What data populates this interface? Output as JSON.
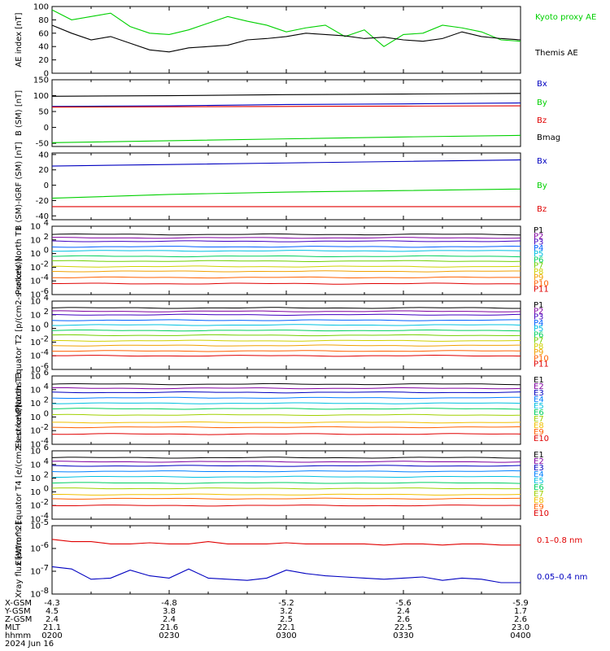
{
  "chart_data": [
    {
      "type": "line",
      "ylabel": "AE index [nT]",
      "ylim": [
        0,
        100
      ],
      "yscale": "linear",
      "yticks": [
        "0",
        "20",
        "40",
        "60",
        "80",
        "100"
      ],
      "series": [
        {
          "name": "Kyoto proxy AE",
          "color": "#00d000",
          "x": [
            "0200",
            "0205",
            "0210",
            "0215",
            "0220",
            "0225",
            "0230",
            "0235",
            "0240",
            "0245",
            "0250",
            "0255",
            "0300",
            "0305",
            "0310",
            "0315",
            "0320",
            "0325",
            "0330",
            "0335",
            "0340",
            "0345",
            "0350",
            "0355",
            "0400"
          ],
          "values": [
            95,
            80,
            85,
            90,
            70,
            60,
            58,
            65,
            75,
            85,
            78,
            72,
            62,
            68,
            72,
            55,
            65,
            40,
            58,
            60,
            72,
            68,
            62,
            50,
            48
          ]
        },
        {
          "name": "Themis AE",
          "color": "#000000",
          "x": [
            "0200",
            "0205",
            "0210",
            "0215",
            "0220",
            "0225",
            "0230",
            "0235",
            "0240",
            "0245",
            "0250",
            "0255",
            "0300",
            "0305",
            "0310",
            "0315",
            "0320",
            "0325",
            "0330",
            "0335",
            "0340",
            "0345",
            "0350",
            "0355",
            "0400"
          ],
          "values": [
            72,
            60,
            50,
            55,
            45,
            35,
            32,
            38,
            40,
            42,
            50,
            52,
            55,
            60,
            58,
            56,
            52,
            54,
            50,
            48,
            52,
            62,
            55,
            52,
            50
          ]
        }
      ]
    },
    {
      "type": "line",
      "ylabel": "B (SM) [nT]",
      "ylim": [
        -60,
        150
      ],
      "yscale": "linear",
      "yticks": [
        "-50",
        "0",
        "50",
        "100",
        "150"
      ],
      "series": [
        {
          "name": "Bx",
          "color": "#0000c0",
          "x": [
            "0200",
            "0230",
            "0300",
            "0330",
            "0400"
          ],
          "values": [
            66,
            68,
            72,
            74,
            77
          ]
        },
        {
          "name": "By",
          "color": "#00d000",
          "x": [
            "0200",
            "0230",
            "0300",
            "0330",
            "0400"
          ],
          "values": [
            -48,
            -42,
            -36,
            -30,
            -25
          ]
        },
        {
          "name": "Bz",
          "color": "#e00000",
          "x": [
            "0200",
            "0230",
            "0300",
            "0330",
            "0400"
          ],
          "values": [
            64,
            65,
            66,
            67,
            68
          ]
        },
        {
          "name": "Bmag",
          "color": "#000000",
          "x": [
            "0200",
            "0230",
            "0300",
            "0330",
            "0400"
          ],
          "values": [
            98,
            100,
            103,
            105,
            107
          ]
        }
      ]
    },
    {
      "type": "line",
      "ylabel": "B (SM)-IGRF (SM) [nT]",
      "ylim": [
        -45,
        42
      ],
      "yscale": "linear",
      "yticks": [
        "-40",
        "-20",
        "0",
        "20",
        "40"
      ],
      "series": [
        {
          "name": "Bx",
          "color": "#0000c0",
          "x": [
            "0200",
            "0230",
            "0300",
            "0330",
            "0400"
          ],
          "values": [
            25,
            27,
            29,
            31,
            33
          ]
        },
        {
          "name": "By",
          "color": "#00d000",
          "x": [
            "0200",
            "0230",
            "0300",
            "0330",
            "0400"
          ],
          "values": [
            -17,
            -12,
            -9,
            -7,
            -5
          ]
        },
        {
          "name": "Bz",
          "color": "#e00000",
          "x": [
            "0200",
            "0230",
            "0300",
            "0330",
            "0400"
          ],
          "values": [
            -28,
            -28,
            -28,
            -28,
            -28
          ]
        }
      ]
    },
    {
      "type": "line",
      "ylabel": "Protons North T1",
      "yscale": "log",
      "yexp": [
        -6,
        4
      ],
      "ytick_exp": [
        -6,
        -4,
        -2,
        0,
        2,
        4
      ],
      "legend": [
        "P1",
        "P2",
        "P3",
        "P4",
        "P5",
        "P6",
        "P7",
        "P8",
        "P9",
        "P10",
        "P11"
      ],
      "colors": [
        "#000000",
        "#8000a0",
        "#4000c0",
        "#0060ff",
        "#00c0e0",
        "#00d060",
        "#70d000",
        "#d0d000",
        "#f0a000",
        "#ff6000",
        "#e00000"
      ],
      "levels_log10": [
        2.8,
        2.3,
        1.8,
        1.0,
        0.4,
        -0.4,
        -1.1,
        -1.9,
        -2.6,
        -3.5,
        -4.4
      ]
    },
    {
      "type": "line",
      "ylabel": "Protons Equator T2 [p/(cm2-s-sr-keV)]",
      "yscale": "log",
      "yexp": [
        -6,
        4
      ],
      "ytick_exp": [
        -6,
        -4,
        -2,
        0,
        2,
        4
      ],
      "legend": [
        "P1",
        "P2",
        "P3",
        "P4",
        "P5",
        "P6",
        "P7",
        "P8",
        "P9",
        "P10",
        "P11"
      ],
      "colors": [
        "#000000",
        "#8000a0",
        "#4000c0",
        "#0060ff",
        "#00c0e0",
        "#00d060",
        "#70d000",
        "#d0d000",
        "#f0a000",
        "#ff6000",
        "#e00000"
      ],
      "levels_log10": [
        3.0,
        2.5,
        2.0,
        1.2,
        0.5,
        -0.3,
        -1.0,
        -1.8,
        -2.5,
        -3.3,
        -4.0
      ]
    },
    {
      "type": "line",
      "ylabel": "Electrons North T3",
      "yscale": "log",
      "yexp": [
        -4,
        6
      ],
      "ytick_exp": [
        -4,
        -2,
        0,
        2,
        4,
        6
      ],
      "legend": [
        "E1",
        "E2",
        "E3",
        "E4",
        "E5",
        "E6",
        "E7",
        "E8",
        "E9",
        "E10"
      ],
      "colors": [
        "#000000",
        "#8000a0",
        "#0000c0",
        "#0080ff",
        "#00c0e0",
        "#00d060",
        "#a0d000",
        "#f0c000",
        "#ff6000",
        "#e00000"
      ],
      "levels_log10": [
        4.8,
        4.2,
        3.6,
        2.8,
        2.0,
        1.2,
        0.3,
        -0.8,
        -1.5,
        -2.5
      ]
    },
    {
      "type": "line",
      "ylabel": "Electrons Equator T4 [e/(cm2-s-sr-keV)]",
      "yscale": "log",
      "yexp": [
        -4,
        6
      ],
      "ytick_exp": [
        -4,
        -2,
        0,
        2,
        4,
        6
      ],
      "legend": [
        "E1",
        "E2",
        "E3",
        "E4",
        "E5",
        "E6",
        "E7",
        "E8",
        "E9",
        "E10"
      ],
      "colors": [
        "#000000",
        "#8000a0",
        "#0000c0",
        "#0080ff",
        "#00c0e0",
        "#00d060",
        "#a0d000",
        "#f0c000",
        "#ff6000",
        "#e00000"
      ],
      "levels_log10": [
        5.0,
        4.4,
        3.8,
        3.0,
        2.2,
        1.3,
        0.5,
        -0.4,
        -1.0,
        -2.0
      ]
    },
    {
      "type": "line",
      "ylabel": "Xray flux [W/m^2]",
      "yscale": "log",
      "yexp": [
        -8,
        -5
      ],
      "ytick_exp": [
        -8,
        -7,
        -6,
        -5
      ],
      "series": [
        {
          "name": "0.1-0.8 nm",
          "color": "#e00000",
          "x": [
            "0200",
            "0205",
            "0210",
            "0215",
            "0220",
            "0225",
            "0230",
            "0235",
            "0240",
            "0245",
            "0250",
            "0255",
            "0300",
            "0305",
            "0310",
            "0315",
            "0320",
            "0325",
            "0330",
            "0335",
            "0340",
            "0345",
            "0350",
            "0355",
            "0400"
          ],
          "values_log10": [
            -5.6,
            -5.7,
            -5.7,
            -5.8,
            -5.8,
            -5.75,
            -5.8,
            -5.8,
            -5.7,
            -5.8,
            -5.8,
            -5.8,
            -5.75,
            -5.8,
            -5.8,
            -5.8,
            -5.8,
            -5.85,
            -5.8,
            -5.8,
            -5.85,
            -5.8,
            -5.8,
            -5.85,
            -5.85
          ]
        },
        {
          "name": "0.05-0.4 nm",
          "color": "#0000c0",
          "x": [
            "0200",
            "0205",
            "0210",
            "0215",
            "0220",
            "0225",
            "0230",
            "0235",
            "0240",
            "0245",
            "0250",
            "0255",
            "0300",
            "0305",
            "0310",
            "0315",
            "0320",
            "0325",
            "0330",
            "0335",
            "0340",
            "0345",
            "0350",
            "0355",
            "0400"
          ],
          "values_log10": [
            -6.8,
            -6.9,
            -7.35,
            -7.3,
            -6.95,
            -7.2,
            -7.3,
            -6.9,
            -7.3,
            -7.35,
            -7.4,
            -7.3,
            -6.95,
            -7.1,
            -7.2,
            -7.25,
            -7.3,
            -7.35,
            -7.3,
            -7.25,
            -7.4,
            -7.3,
            -7.35,
            -7.5,
            -7.5
          ]
        }
      ]
    }
  ],
  "xaxis": {
    "row_labels": [
      "X-GSM",
      "Y-GSM",
      "Z-GSM",
      "MLT",
      "hhmm",
      "2024 Jun 16"
    ],
    "columns": [
      {
        "x": "-4.3",
        "y": "4.5",
        "z": "2.4",
        "mlt": "21.1",
        "hhmm": "0200"
      },
      {
        "x": "-4.8",
        "y": "3.8",
        "z": "2.4",
        "mlt": "21.6",
        "hhmm": "0230"
      },
      {
        "x": "-5.2",
        "y": "3.2",
        "z": "2.5",
        "mlt": "22.1",
        "hhmm": "0300"
      },
      {
        "x": "-5.6",
        "y": "2.4",
        "z": "2.6",
        "mlt": "22.5",
        "hhmm": "0330"
      },
      {
        "x": "-5.9",
        "y": "1.7",
        "z": "2.6",
        "mlt": "23.0",
        "hhmm": "0400"
      }
    ]
  },
  "legend_labels": {
    "ae_kyoto": "Kyoto proxy AE",
    "ae_themis": "Themis AE",
    "bx": "Bx",
    "by": "By",
    "bz": "Bz",
    "bmag": "Bmag",
    "xray_long": "0.1–0.8 nm",
    "xray_short": "0.05–0.4 nm"
  }
}
